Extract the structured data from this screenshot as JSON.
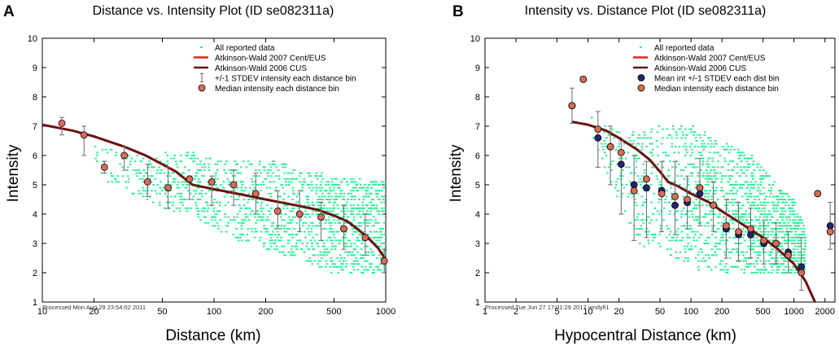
{
  "colors": {
    "scatter": "#33ee99",
    "atkinson_2007": "#e8201a",
    "atkinson_2006": "#6b0f0f",
    "median_fill": "#d96b57",
    "mean_fill": "#22246e",
    "errbar": "#6a6a6a"
  },
  "chart_data": [
    {
      "panel_letter": "A",
      "type": "scatter",
      "title": "Distance vs. Intensity Plot (ID se082311a)",
      "xlabel": "Distance (km)",
      "ylabel": "Intensity",
      "xscale": "log",
      "xlim": [
        10,
        1000
      ],
      "ylim": [
        1,
        10
      ],
      "xticks": [
        10,
        20,
        50,
        100,
        200,
        500,
        1000
      ],
      "yticks": [
        1,
        2,
        3,
        4,
        5,
        6,
        7,
        8,
        9,
        10
      ],
      "processed": "Processed Mon Aug 29 23:54:02 2011",
      "legend": {
        "position": "top-right",
        "entries": [
          {
            "label": "All reported data",
            "marker": "scatter"
          },
          {
            "label": "Atkinson-Wald 2007 Cent/EUS",
            "marker": "line-red"
          },
          {
            "label": "Atkinson-Wald 2006 CUS",
            "marker": "line-dark"
          },
          {
            "label": "+/-1 STDEV intensity each distance bin",
            "marker": "errbar"
          },
          {
            "label": "Median intensity each distance bin",
            "marker": "median"
          }
        ]
      },
      "scatter_cloud": [
        {
          "x": 20,
          "y_lo": 5.4,
          "y_hi": 6.4
        },
        {
          "x": 40,
          "y_lo": 4.4,
          "y_hi": 6.0
        },
        {
          "x": 70,
          "y_lo": 4.0,
          "y_hi": 6.2
        },
        {
          "x": 100,
          "y_lo": 3.5,
          "y_hi": 5.9
        },
        {
          "x": 150,
          "y_lo": 3.0,
          "y_hi": 5.8
        },
        {
          "x": 200,
          "y_lo": 2.8,
          "y_hi": 5.9
        },
        {
          "x": 300,
          "y_lo": 2.5,
          "y_hi": 5.6
        },
        {
          "x": 500,
          "y_lo": 2.0,
          "y_hi": 5.3
        },
        {
          "x": 700,
          "y_lo": 2.0,
          "y_hi": 5.2
        },
        {
          "x": 1000,
          "y_lo": 2.0,
          "y_hi": 5.1
        }
      ],
      "model_curve": [
        [
          10,
          7.05
        ],
        [
          15,
          6.85
        ],
        [
          20,
          6.65
        ],
        [
          30,
          6.3
        ],
        [
          40,
          6.0
        ],
        [
          50,
          5.7
        ],
        [
          60,
          5.45
        ],
        [
          75,
          5.0
        ],
        [
          100,
          4.85
        ],
        [
          150,
          4.65
        ],
        [
          200,
          4.5
        ],
        [
          300,
          4.3
        ],
        [
          400,
          4.15
        ],
        [
          500,
          3.95
        ],
        [
          600,
          3.75
        ],
        [
          700,
          3.45
        ],
        [
          800,
          3.15
        ],
        [
          900,
          2.85
        ],
        [
          1000,
          2.45
        ]
      ],
      "median": [
        {
          "x": 13,
          "y": 7.1,
          "lo": 6.7,
          "hi": 7.3
        },
        {
          "x": 17.5,
          "y": 6.7,
          "lo": 6.0,
          "hi": 7.0
        },
        {
          "x": 23,
          "y": 5.6,
          "lo": 5.4,
          "hi": 5.8
        },
        {
          "x": 30,
          "y": 6.0,
          "lo": 5.5,
          "hi": 6.3
        },
        {
          "x": 41,
          "y": 5.1,
          "lo": 4.6,
          "hi": 5.7
        },
        {
          "x": 54,
          "y": 4.9,
          "lo": 4.2,
          "hi": 5.6
        },
        {
          "x": 72,
          "y": 5.2,
          "lo": 4.5,
          "hi": 5.3
        },
        {
          "x": 97,
          "y": 5.1,
          "lo": 4.3,
          "hi": 5.3
        },
        {
          "x": 130,
          "y": 5.0,
          "lo": 4.3,
          "hi": 5.5
        },
        {
          "x": 175,
          "y": 4.7,
          "lo": 4.0,
          "hi": 5.4
        },
        {
          "x": 235,
          "y": 4.1,
          "lo": 3.5,
          "hi": 4.8
        },
        {
          "x": 315,
          "y": 4.0,
          "lo": 3.4,
          "hi": 4.8
        },
        {
          "x": 420,
          "y": 3.9,
          "lo": 3.1,
          "hi": 4.4
        },
        {
          "x": 570,
          "y": 3.5,
          "lo": 2.8,
          "hi": 4.3
        },
        {
          "x": 760,
          "y": 3.2,
          "lo": 2.6,
          "hi": 4.0
        },
        {
          "x": 980,
          "y": 2.4,
          "lo": 2.0,
          "hi": 2.8
        }
      ],
      "mean": []
    },
    {
      "panel_letter": "B",
      "type": "scatter",
      "title": "Intensity vs. Distance Plot (ID se082311a)",
      "xlabel": "Hypocentral Distance (km)",
      "ylabel": "Intensity",
      "xscale": "log",
      "xlim": [
        1,
        2500
      ],
      "ylim": [
        1,
        10
      ],
      "xticks": [
        1,
        2,
        5,
        10,
        20,
        50,
        100,
        200,
        500,
        1000,
        2000
      ],
      "yticks": [
        1,
        2,
        3,
        4,
        5,
        6,
        7,
        8,
        9,
        10
      ],
      "processed": "Processed Tue Jun 27 17:01:29 2017 vmdyfi1",
      "legend": {
        "position": "top-right",
        "entries": [
          {
            "label": "All reported data",
            "marker": "scatter"
          },
          {
            "label": "Atkinson-Wald 2007 Cent/EUS",
            "marker": "line-red"
          },
          {
            "label": "Atkinson-Wald 2006 CUS",
            "marker": "line-dark"
          },
          {
            "label": "Mean int +/-1 STDEV each dist bin",
            "marker": "mean"
          },
          {
            "label": "Median intensity each distance bin",
            "marker": "median"
          }
        ]
      },
      "scatter_cloud": [
        {
          "x": 10,
          "y_lo": 6.6,
          "y_hi": 7.5
        },
        {
          "x": 15,
          "y_lo": 5.5,
          "y_hi": 7.1
        },
        {
          "x": 20,
          "y_lo": 4.5,
          "y_hi": 6.8
        },
        {
          "x": 30,
          "y_lo": 3.0,
          "y_hi": 6.8
        },
        {
          "x": 50,
          "y_lo": 2.7,
          "y_hi": 7.0
        },
        {
          "x": 100,
          "y_lo": 2.2,
          "y_hi": 7.0
        },
        {
          "x": 200,
          "y_lo": 2.0,
          "y_hi": 6.5
        },
        {
          "x": 400,
          "y_lo": 2.0,
          "y_hi": 6.0
        },
        {
          "x": 700,
          "y_lo": 2.0,
          "y_hi": 5.0
        },
        {
          "x": 1000,
          "y_lo": 2.0,
          "y_hi": 4.5
        },
        {
          "x": 1300,
          "y_lo": 2.0,
          "y_hi": 3.5
        }
      ],
      "model_curve": [
        [
          7,
          7.15
        ],
        [
          10,
          7.05
        ],
        [
          15,
          6.85
        ],
        [
          20,
          6.6
        ],
        [
          30,
          6.2
        ],
        [
          40,
          5.85
        ],
        [
          50,
          5.45
        ],
        [
          60,
          5.1
        ],
        [
          75,
          4.95
        ],
        [
          100,
          4.7
        ],
        [
          150,
          4.4
        ],
        [
          200,
          4.1
        ],
        [
          300,
          3.7
        ],
        [
          500,
          3.2
        ],
        [
          700,
          2.8
        ],
        [
          1000,
          2.3
        ],
        [
          1300,
          1.7
        ],
        [
          1600,
          1.0
        ]
      ],
      "median": [
        {
          "x": 7,
          "y": 7.7
        },
        {
          "x": 9,
          "y": 8.6
        },
        {
          "x": 12.5,
          "y": 6.9
        },
        {
          "x": 16.5,
          "y": 6.3
        },
        {
          "x": 21,
          "y": 6.1
        },
        {
          "x": 28,
          "y": 4.8
        },
        {
          "x": 37,
          "y": 5.2
        },
        {
          "x": 52,
          "y": 4.7
        },
        {
          "x": 70,
          "y": 4.6
        },
        {
          "x": 92,
          "y": 4.5
        },
        {
          "x": 122,
          "y": 4.9
        },
        {
          "x": 165,
          "y": 4.3
        },
        {
          "x": 220,
          "y": 3.6
        },
        {
          "x": 290,
          "y": 3.4
        },
        {
          "x": 380,
          "y": 3.5
        },
        {
          "x": 510,
          "y": 3.1
        },
        {
          "x": 670,
          "y": 3.0
        },
        {
          "x": 880,
          "y": 2.6
        },
        {
          "x": 1180,
          "y": 2.0
        },
        {
          "x": 1700,
          "y": 4.7
        },
        {
          "x": 2250,
          "y": 3.4
        }
      ],
      "mean": [
        {
          "x": 7,
          "y": 7.7,
          "lo": 7.1,
          "hi": 8.3
        },
        {
          "x": 9,
          "y": 8.6,
          "lo": 8.6,
          "hi": 8.6
        },
        {
          "x": 12.5,
          "y": 6.6,
          "lo": 5.6,
          "hi": 7.5
        },
        {
          "x": 16.5,
          "y": 6.3,
          "lo": 5.0,
          "hi": 7.0
        },
        {
          "x": 21,
          "y": 5.7,
          "lo": 4.0,
          "hi": 6.5
        },
        {
          "x": 28,
          "y": 5.0,
          "lo": 3.1,
          "hi": 6.0
        },
        {
          "x": 37,
          "y": 4.9,
          "lo": 3.2,
          "hi": 5.8
        },
        {
          "x": 52,
          "y": 4.8,
          "lo": 3.4,
          "hi": 5.8
        },
        {
          "x": 70,
          "y": 4.3,
          "lo": 3.3,
          "hi": 5.8
        },
        {
          "x": 92,
          "y": 4.4,
          "lo": 3.5,
          "hi": 5.3
        },
        {
          "x": 122,
          "y": 4.7,
          "lo": 3.6,
          "hi": 5.9
        },
        {
          "x": 165,
          "y": 4.3,
          "lo": 3.4,
          "hi": 5.1
        },
        {
          "x": 220,
          "y": 3.5,
          "lo": 2.5,
          "hi": 4.5
        },
        {
          "x": 290,
          "y": 3.3,
          "lo": 2.4,
          "hi": 4.4
        },
        {
          "x": 380,
          "y": 3.3,
          "lo": 2.5,
          "hi": 4.2
        },
        {
          "x": 510,
          "y": 3.0,
          "lo": 2.3,
          "hi": 3.8
        },
        {
          "x": 670,
          "y": 3.0,
          "lo": 2.3,
          "hi": 3.7
        },
        {
          "x": 880,
          "y": 2.7,
          "lo": 2.0,
          "hi": 3.4
        },
        {
          "x": 1180,
          "y": 2.2,
          "lo": 1.4,
          "hi": 3.2
        },
        {
          "x": 1700,
          "y": 4.7,
          "lo": 4.7,
          "hi": 4.7
        },
        {
          "x": 2250,
          "y": 3.6,
          "lo": 2.8,
          "hi": 4.4
        }
      ]
    }
  ]
}
